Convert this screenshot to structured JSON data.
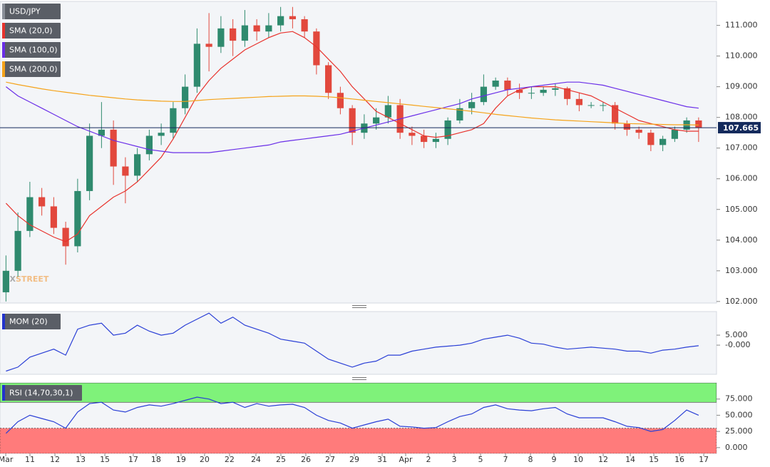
{
  "chart_data": [
    {
      "type": "candlestick",
      "title": "USD/JPY",
      "title_color": "#8a8f99",
      "up_color": "#2f8a6e",
      "down_color": "#e2483d",
      "last_color": "#142a5c",
      "xlim": [
        -0.5,
        59.5
      ],
      "ylim": [
        101.95,
        111.78
      ],
      "yticks": [
        {
          "value": 102,
          "label": "102.000"
        },
        {
          "value": 103,
          "label": "103.000"
        },
        {
          "value": 104,
          "label": "104.000"
        },
        {
          "value": 105,
          "label": "105.000"
        },
        {
          "value": 106,
          "label": "106.000"
        },
        {
          "value": 107,
          "label": "107.000"
        },
        {
          "value": 108,
          "label": "108.000"
        },
        {
          "value": 109,
          "label": "109.000"
        },
        {
          "value": 110,
          "label": "110.000"
        },
        {
          "value": 111,
          "label": "111.000"
        }
      ],
      "open": [
        102.3,
        103.0,
        104.3,
        105.4,
        105.1,
        104.4,
        103.8,
        105.6,
        107.4,
        107.6,
        106.4,
        106.1,
        106.8,
        107.4,
        107.5,
        108.3,
        109.0,
        110.4,
        110.3,
        110.9,
        110.5,
        111.0,
        110.8,
        111.0,
        111.3,
        111.2,
        110.8,
        109.7,
        108.8,
        108.3,
        107.5,
        107.8,
        108.0,
        108.4,
        107.5,
        107.4,
        107.2,
        107.3,
        107.9,
        108.3,
        108.5,
        109.0,
        109.2,
        108.9,
        108.8,
        108.8,
        108.9,
        108.95,
        108.6,
        108.4,
        108.4,
        108.4,
        107.8,
        107.6,
        107.5,
        107.1,
        107.3,
        107.6,
        107.9
      ],
      "high": [
        103.5,
        104.9,
        105.9,
        105.7,
        105.4,
        104.6,
        106.0,
        107.8,
        108.5,
        107.9,
        106.7,
        107.0,
        107.6,
        107.8,
        108.5,
        109.4,
        110.9,
        111.4,
        111.3,
        111.2,
        111.5,
        111.2,
        111.4,
        111.6,
        111.6,
        111.3,
        110.9,
        109.8,
        109.0,
        108.4,
        108.1,
        108.3,
        108.7,
        108.6,
        107.7,
        107.6,
        107.5,
        108.0,
        108.6,
        108.8,
        109.4,
        109.3,
        109.3,
        109.1,
        109.0,
        109.0,
        109.1,
        109.0,
        108.8,
        108.5,
        108.5,
        108.5,
        107.9,
        107.7,
        107.6,
        107.4,
        107.7,
        108.0,
        108.0
      ],
      "low": [
        102.0,
        102.8,
        104.1,
        104.8,
        104.2,
        103.2,
        103.6,
        105.3,
        107.0,
        105.8,
        105.2,
        105.9,
        106.6,
        107.1,
        107.3,
        108.1,
        108.8,
        109.5,
        110.1,
        110.0,
        110.3,
        110.5,
        110.6,
        110.8,
        110.9,
        110.6,
        109.4,
        108.6,
        108.1,
        107.1,
        107.3,
        107.6,
        107.8,
        107.3,
        107.1,
        107.0,
        107.0,
        107.1,
        107.8,
        108.1,
        108.4,
        108.9,
        108.7,
        108.6,
        108.6,
        108.7,
        108.7,
        108.4,
        108.2,
        108.3,
        108.2,
        107.6,
        107.4,
        107.3,
        106.9,
        106.9,
        107.2,
        107.5,
        107.2
      ],
      "close": [
        103.0,
        104.3,
        105.4,
        105.1,
        104.4,
        103.8,
        105.6,
        107.4,
        107.6,
        106.4,
        106.1,
        106.8,
        107.4,
        107.5,
        108.3,
        109.0,
        110.4,
        110.3,
        110.9,
        110.5,
        111.0,
        110.8,
        111.0,
        111.3,
        111.2,
        110.8,
        109.7,
        108.8,
        108.3,
        107.5,
        107.8,
        108.0,
        108.4,
        107.5,
        107.4,
        107.2,
        107.3,
        107.9,
        108.3,
        108.5,
        109.0,
        109.2,
        108.9,
        108.8,
        108.8,
        108.9,
        108.95,
        108.6,
        108.4,
        108.4,
        108.4,
        107.8,
        107.6,
        107.5,
        107.1,
        107.3,
        107.6,
        107.9,
        107.665
      ],
      "series": [
        {
          "name": "SMA (20,0)",
          "color": "#e8332d",
          "values": [
            105.2,
            104.8,
            104.5,
            104.3,
            104.1,
            103.95,
            104.2,
            104.8,
            105.1,
            105.4,
            105.6,
            105.9,
            106.3,
            106.7,
            107.3,
            108.0,
            108.7,
            109.2,
            109.6,
            109.9,
            110.2,
            110.4,
            110.6,
            110.75,
            110.8,
            110.6,
            110.3,
            109.9,
            109.5,
            109.0,
            108.6,
            108.2,
            108.0,
            107.8,
            107.6,
            107.4,
            107.35,
            107.4,
            107.5,
            107.6,
            107.8,
            108.3,
            108.7,
            108.9,
            109.0,
            109.0,
            109.0,
            108.9,
            108.8,
            108.7,
            108.5,
            108.3,
            108.1,
            107.9,
            107.8,
            107.7,
            107.6,
            107.55,
            107.55
          ]
        },
        {
          "name": "SMA (100,0)",
          "color": "#6a2ee8",
          "values": [
            109.0,
            108.7,
            108.5,
            108.3,
            108.1,
            107.9,
            107.7,
            107.55,
            107.4,
            107.25,
            107.15,
            107.05,
            106.95,
            106.9,
            106.85,
            106.85,
            106.85,
            106.85,
            106.9,
            106.95,
            107.0,
            107.05,
            107.1,
            107.2,
            107.25,
            107.3,
            107.35,
            107.4,
            107.45,
            107.55,
            107.65,
            107.75,
            107.85,
            107.95,
            108.05,
            108.15,
            108.25,
            108.35,
            108.45,
            108.6,
            108.7,
            108.8,
            108.9,
            108.95,
            109.0,
            109.05,
            109.1,
            109.15,
            109.15,
            109.1,
            109.05,
            108.95,
            108.85,
            108.75,
            108.65,
            108.55,
            108.45,
            108.35,
            108.3
          ]
        },
        {
          "name": "SMA (200,0)",
          "color": "#f5a31a",
          "values": [
            109.15,
            109.07,
            109.0,
            108.93,
            108.87,
            108.82,
            108.77,
            108.72,
            108.68,
            108.64,
            108.6,
            108.57,
            108.55,
            108.53,
            108.52,
            108.52,
            108.55,
            108.58,
            108.6,
            108.62,
            108.64,
            108.66,
            108.68,
            108.69,
            108.7,
            108.7,
            108.69,
            108.67,
            108.64,
            108.6,
            108.56,
            108.52,
            108.48,
            108.44,
            108.4,
            108.36,
            108.32,
            108.28,
            108.24,
            108.2,
            108.15,
            108.1,
            108.06,
            108.02,
            107.98,
            107.95,
            107.92,
            107.9,
            107.88,
            107.86,
            107.84,
            107.82,
            107.8,
            107.79,
            107.78,
            107.77,
            107.76,
            107.76,
            107.75
          ]
        }
      ],
      "watermark": [
        "FX",
        "STREET"
      ]
    },
    {
      "type": "line",
      "title": "MOM (20)",
      "title_color": "#2233cc",
      "xlim": [
        -0.5,
        59.5
      ],
      "ylim": [
        -14.6,
        16.8
      ],
      "yticks": [
        {
          "value": 5,
          "label": "5.000"
        },
        {
          "value": 0,
          "label": "-0.000"
        }
      ],
      "series": [
        {
          "name": "MOM (20)",
          "color": "#2a3fd6",
          "values": [
            -13,
            -11,
            -6,
            -4,
            -2,
            -5,
            8,
            10,
            11,
            5,
            6,
            10,
            7,
            5,
            6,
            10,
            13,
            16,
            11,
            14,
            10,
            8,
            6,
            3,
            2,
            1,
            -3,
            -7,
            -9,
            -11,
            -9,
            -8,
            -5,
            -5,
            -3,
            -2,
            -1,
            -0.5,
            0,
            1,
            3,
            4,
            5,
            3.5,
            1,
            0.5,
            -1,
            -2,
            -1.5,
            -1,
            -1.5,
            -2,
            -3,
            -3,
            -4,
            -2.5,
            -2,
            -1,
            -0.3
          ]
        }
      ]
    },
    {
      "type": "line",
      "title": "RSI (14,70,30,1)",
      "title_color": "#2233cc",
      "xlim": [
        -0.5,
        59.5
      ],
      "ylim": [
        -9,
        100
      ],
      "overbought": 70,
      "oversold": 30,
      "overbought_color": "#7ff27a",
      "oversold_color": "#ff7b7b",
      "yticks": [
        {
          "value": 0,
          "label": "0.000"
        },
        {
          "value": 25,
          "label": "25.000"
        },
        {
          "value": 50,
          "label": "50.000"
        },
        {
          "value": 75,
          "label": "75.000"
        }
      ],
      "xticks": [
        {
          "value": -0.02,
          "label": "Mar"
        },
        {
          "value": 2.01,
          "label": "11"
        },
        {
          "value": 4.1,
          "label": "12"
        },
        {
          "value": 6.25,
          "label": "13"
        },
        {
          "value": 8.28,
          "label": "15"
        },
        {
          "value": 10.66,
          "label": "17"
        },
        {
          "value": 12.57,
          "label": "18"
        },
        {
          "value": 14.66,
          "label": "19"
        },
        {
          "value": 16.63,
          "label": "20"
        },
        {
          "value": 18.72,
          "label": "22"
        },
        {
          "value": 20.93,
          "label": "24"
        },
        {
          "value": 23.02,
          "label": "25"
        },
        {
          "value": 25.11,
          "label": "26"
        },
        {
          "value": 27.14,
          "label": "27"
        },
        {
          "value": 29.17,
          "label": "29"
        },
        {
          "value": 31.5,
          "label": "31"
        },
        {
          "value": 33.47,
          "label": "Apr"
        },
        {
          "value": 35.38,
          "label": "2"
        },
        {
          "value": 37.53,
          "label": "3"
        },
        {
          "value": 39.74,
          "label": "5"
        },
        {
          "value": 41.83,
          "label": "7"
        },
        {
          "value": 43.92,
          "label": "8"
        },
        {
          "value": 45.89,
          "label": "9"
        },
        {
          "value": 47.92,
          "label": "10"
        },
        {
          "value": 50.01,
          "label": "12"
        },
        {
          "value": 52.28,
          "label": "14"
        },
        {
          "value": 54.25,
          "label": "15"
        },
        {
          "value": 56.4,
          "label": "16"
        },
        {
          "value": 58.43,
          "label": "17"
        }
      ],
      "series": [
        {
          "name": "RSI (14,70,30,1)",
          "color": "#2a3fd6",
          "values": [
            22,
            40,
            50,
            45,
            40,
            30,
            55,
            68,
            70,
            58,
            55,
            62,
            66,
            64,
            68,
            73,
            78,
            75,
            68,
            70,
            62,
            68,
            64,
            66,
            67,
            62,
            50,
            42,
            38,
            30,
            35,
            40,
            44,
            33,
            32,
            30,
            31,
            40,
            48,
            52,
            62,
            66,
            60,
            58,
            57,
            60,
            62,
            52,
            46,
            46,
            46,
            40,
            33,
            31,
            25,
            28,
            42,
            58,
            50
          ]
        }
      ]
    }
  ]
}
